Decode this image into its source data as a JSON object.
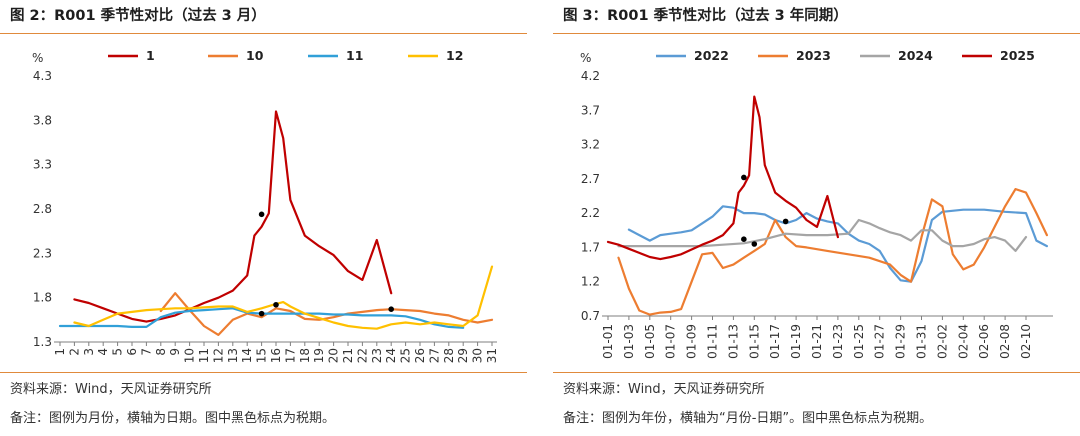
{
  "left": {
    "title": "图 2：R001 季节性对比（过去 3 月）",
    "source": "资料来源：Wind，天风证券研究所",
    "note": "备注：图例为月份，横轴为日期。图中黑色标点为税期。",
    "chart_data": {
      "type": "line",
      "ylabel": "%",
      "ylim": [
        1.3,
        4.3
      ],
      "yticks": [
        1.3,
        1.8,
        2.3,
        2.8,
        3.3,
        3.8,
        4.3
      ],
      "categories": [
        "1",
        "2",
        "3",
        "4",
        "5",
        "6",
        "7",
        "8",
        "9",
        "10",
        "11",
        "12",
        "13",
        "14",
        "15",
        "16",
        "17",
        "18",
        "19",
        "20",
        "21",
        "22",
        "23",
        "24",
        "25",
        "26",
        "27",
        "28",
        "29",
        "30",
        "31"
      ],
      "legend_position": "top",
      "series": [
        {
          "name": "1",
          "color": "#c00000",
          "points": [
            [
              2,
              1.78
            ],
            [
              3,
              1.74
            ],
            [
              4,
              1.68
            ],
            [
              5,
              1.62
            ],
            [
              6,
              1.56
            ],
            [
              7,
              1.53
            ],
            [
              8,
              1.56
            ],
            [
              9,
              1.6
            ],
            [
              10,
              1.67
            ],
            [
              11,
              1.74
            ],
            [
              12,
              1.8
            ],
            [
              13,
              1.88
            ],
            [
              14,
              2.05
            ],
            [
              14.5,
              2.5
            ],
            [
              15,
              2.6
            ],
            [
              15.5,
              2.75
            ],
            [
              16,
              3.9
            ],
            [
              16.5,
              3.6
            ],
            [
              17,
              2.9
            ],
            [
              18,
              2.5
            ],
            [
              19,
              2.38
            ],
            [
              20,
              2.28
            ],
            [
              21,
              2.1
            ],
            [
              22,
              2.0
            ],
            [
              23,
              2.45
            ],
            [
              24,
              1.85
            ]
          ]
        },
        {
          "name": "10",
          "color": "#ed7d31",
          "points": [
            [
              8,
              1.65
            ],
            [
              9,
              1.85
            ],
            [
              10,
              1.66
            ],
            [
              11,
              1.48
            ],
            [
              12,
              1.38
            ],
            [
              13,
              1.55
            ],
            [
              14,
              1.62
            ],
            [
              15,
              1.58
            ],
            [
              16,
              1.68
            ],
            [
              17,
              1.65
            ],
            [
              18,
              1.56
            ],
            [
              19,
              1.55
            ],
            [
              20,
              1.58
            ],
            [
              21,
              1.62
            ],
            [
              22,
              1.64
            ],
            [
              23,
              1.66
            ],
            [
              24,
              1.67
            ],
            [
              25,
              1.66
            ],
            [
              26,
              1.65
            ],
            [
              27,
              1.62
            ],
            [
              28,
              1.6
            ],
            [
              29,
              1.55
            ],
            [
              30,
              1.52
            ],
            [
              31,
              1.55
            ]
          ]
        },
        {
          "name": "11",
          "color": "#31a0d8",
          "points": [
            [
              1,
              1.48
            ],
            [
              2,
              1.48
            ],
            [
              3,
              1.48
            ],
            [
              4,
              1.48
            ],
            [
              5,
              1.48
            ],
            [
              6,
              1.47
            ],
            [
              7,
              1.47
            ],
            [
              8,
              1.58
            ],
            [
              9,
              1.63
            ],
            [
              10,
              1.65
            ],
            [
              11,
              1.66
            ],
            [
              12,
              1.67
            ],
            [
              13,
              1.68
            ],
            [
              14,
              1.63
            ],
            [
              15,
              1.62
            ],
            [
              16,
              1.62
            ],
            [
              17,
              1.62
            ],
            [
              18,
              1.62
            ],
            [
              19,
              1.62
            ],
            [
              20,
              1.61
            ],
            [
              21,
              1.61
            ],
            [
              22,
              1.6
            ],
            [
              23,
              1.6
            ],
            [
              24,
              1.6
            ],
            [
              25,
              1.59
            ],
            [
              26,
              1.55
            ],
            [
              27,
              1.5
            ],
            [
              28,
              1.47
            ],
            [
              29,
              1.46
            ]
          ]
        },
        {
          "name": "12",
          "color": "#ffc000",
          "points": [
            [
              2,
              1.52
            ],
            [
              3,
              1.48
            ],
            [
              4,
              1.55
            ],
            [
              5,
              1.62
            ],
            [
              6,
              1.64
            ],
            [
              7,
              1.66
            ],
            [
              8,
              1.67
            ],
            [
              9,
              1.68
            ],
            [
              10,
              1.68
            ],
            [
              11,
              1.69
            ],
            [
              12,
              1.7
            ],
            [
              13,
              1.7
            ],
            [
              14,
              1.64
            ],
            [
              15,
              1.68
            ],
            [
              16,
              1.73
            ],
            [
              16.5,
              1.75
            ],
            [
              17,
              1.7
            ],
            [
              18,
              1.62
            ],
            [
              19,
              1.57
            ],
            [
              20,
              1.52
            ],
            [
              21,
              1.48
            ],
            [
              22,
              1.46
            ],
            [
              23,
              1.45
            ],
            [
              24,
              1.5
            ],
            [
              25,
              1.52
            ],
            [
              26,
              1.5
            ],
            [
              27,
              1.52
            ],
            [
              28,
              1.5
            ],
            [
              29,
              1.48
            ],
            [
              30,
              1.6
            ],
            [
              31,
              2.15
            ]
          ]
        }
      ],
      "tax_period_markers": [
        [
          15,
          2.74
        ],
        [
          16,
          1.72
        ],
        [
          15,
          1.62
        ],
        [
          24,
          1.67
        ]
      ]
    }
  },
  "right": {
    "title": "图 3：R001 季节性对比（过去 3 年同期）",
    "source": "资料来源：Wind，天风证券研究所",
    "note": "备注：图例为年份，横轴为“月份-日期”。图中黑色标点为税期。",
    "chart_data": {
      "type": "line",
      "ylabel": "%",
      "ylim": [
        0.7,
        4.2
      ],
      "yticks": [
        0.7,
        1.2,
        1.7,
        2.2,
        2.7,
        3.2,
        3.7,
        4.2
      ],
      "categories": [
        "01-01",
        "01-03",
        "01-05",
        "01-07",
        "01-09",
        "01-11",
        "01-13",
        "01-15",
        "01-17",
        "01-19",
        "01-21",
        "01-23",
        "01-25",
        "01-27",
        "01-29",
        "01-31",
        "02-02",
        "02-04",
        "02-06",
        "02-08",
        "02-10"
      ],
      "legend_position": "top",
      "series": [
        {
          "name": "2022",
          "color": "#5b9bd5",
          "points": [
            [
              3,
              1.96
            ],
            [
              4,
              1.88
            ],
            [
              5,
              1.8
            ],
            [
              6,
              1.88
            ],
            [
              7,
              1.9
            ],
            [
              8,
              1.92
            ],
            [
              9,
              1.95
            ],
            [
              10,
              2.05
            ],
            [
              11,
              2.15
            ],
            [
              12,
              2.3
            ],
            [
              13,
              2.28
            ],
            [
              14,
              2.2
            ],
            [
              15,
              2.2
            ],
            [
              16,
              2.18
            ],
            [
              17,
              2.1
            ],
            [
              18,
              2.05
            ],
            [
              19,
              2.1
            ],
            [
              20,
              2.2
            ],
            [
              21,
              2.12
            ],
            [
              22,
              2.08
            ],
            [
              23,
              2.05
            ],
            [
              24,
              1.9
            ],
            [
              25,
              1.8
            ],
            [
              26,
              1.75
            ],
            [
              27,
              1.65
            ],
            [
              28,
              1.4
            ],
            [
              29,
              1.22
            ],
            [
              30,
              1.2
            ],
            [
              31,
              1.5
            ],
            [
              32,
              2.1
            ],
            [
              33,
              2.22
            ],
            [
              35,
              2.25
            ],
            [
              37,
              2.25
            ],
            [
              39,
              2.22
            ],
            [
              41,
              2.2
            ],
            [
              42,
              1.8
            ],
            [
              43,
              1.72
            ]
          ]
        },
        {
          "name": "2023",
          "color": "#ed7d31",
          "points": [
            [
              2,
              1.55
            ],
            [
              3,
              1.1
            ],
            [
              4,
              0.78
            ],
            [
              5,
              0.72
            ],
            [
              6,
              0.75
            ],
            [
              7,
              0.76
            ],
            [
              8,
              0.8
            ],
            [
              9,
              1.2
            ],
            [
              10,
              1.6
            ],
            [
              11,
              1.62
            ],
            [
              12,
              1.4
            ],
            [
              13,
              1.45
            ],
            [
              14,
              1.55
            ],
            [
              15,
              1.65
            ],
            [
              16,
              1.75
            ],
            [
              17,
              2.1
            ],
            [
              18,
              1.85
            ],
            [
              19,
              1.72
            ],
            [
              20,
              1.7
            ],
            [
              22,
              1.65
            ],
            [
              24,
              1.6
            ],
            [
              26,
              1.55
            ],
            [
              28,
              1.45
            ],
            [
              29,
              1.3
            ],
            [
              30,
              1.2
            ],
            [
              31,
              1.85
            ],
            [
              32,
              2.4
            ],
            [
              33,
              2.3
            ],
            [
              34,
              1.6
            ],
            [
              35,
              1.38
            ],
            [
              36,
              1.45
            ],
            [
              37,
              1.7
            ],
            [
              38,
              2.0
            ],
            [
              39,
              2.3
            ],
            [
              40,
              2.55
            ],
            [
              41,
              2.5
            ],
            [
              42,
              2.2
            ],
            [
              43,
              1.88
            ]
          ]
        },
        {
          "name": "2024",
          "color": "#a5a5a5",
          "points": [
            [
              2,
              1.72
            ],
            [
              4,
              1.72
            ],
            [
              6,
              1.72
            ],
            [
              8,
              1.72
            ],
            [
              10,
              1.72
            ],
            [
              12,
              1.74
            ],
            [
              14,
              1.76
            ],
            [
              16,
              1.82
            ],
            [
              18,
              1.9
            ],
            [
              20,
              1.88
            ],
            [
              22,
              1.88
            ],
            [
              24,
              1.9
            ],
            [
              25,
              2.1
            ],
            [
              26,
              2.05
            ],
            [
              27,
              1.98
            ],
            [
              28,
              1.92
            ],
            [
              29,
              1.88
            ],
            [
              30,
              1.8
            ],
            [
              31,
              1.95
            ],
            [
              32,
              1.95
            ],
            [
              33,
              1.8
            ],
            [
              34,
              1.72
            ],
            [
              35,
              1.72
            ],
            [
              36,
              1.75
            ],
            [
              37,
              1.82
            ],
            [
              38,
              1.85
            ],
            [
              39,
              1.8
            ],
            [
              40,
              1.65
            ],
            [
              41,
              1.85
            ]
          ]
        },
        {
          "name": "2025",
          "color": "#c00000",
          "points": [
            [
              1,
              1.78
            ],
            [
              2,
              1.74
            ],
            [
              3,
              1.68
            ],
            [
              4,
              1.62
            ],
            [
              5,
              1.56
            ],
            [
              6,
              1.53
            ],
            [
              7,
              1.56
            ],
            [
              8,
              1.6
            ],
            [
              9,
              1.67
            ],
            [
              10,
              1.74
            ],
            [
              11,
              1.8
            ],
            [
              12,
              1.88
            ],
            [
              13,
              2.05
            ],
            [
              13.5,
              2.5
            ],
            [
              14,
              2.6
            ],
            [
              14.5,
              2.75
            ],
            [
              15,
              3.9
            ],
            [
              15.5,
              3.6
            ],
            [
              16,
              2.9
            ],
            [
              17,
              2.5
            ],
            [
              18,
              2.38
            ],
            [
              19,
              2.28
            ],
            [
              20,
              2.1
            ],
            [
              21,
              2.0
            ],
            [
              22,
              2.45
            ],
            [
              23,
              1.85
            ]
          ]
        }
      ],
      "tax_period_markers": [
        [
          14,
          2.72
        ],
        [
          15,
          1.75
        ],
        [
          14,
          1.82
        ],
        [
          18,
          2.08
        ]
      ]
    }
  }
}
